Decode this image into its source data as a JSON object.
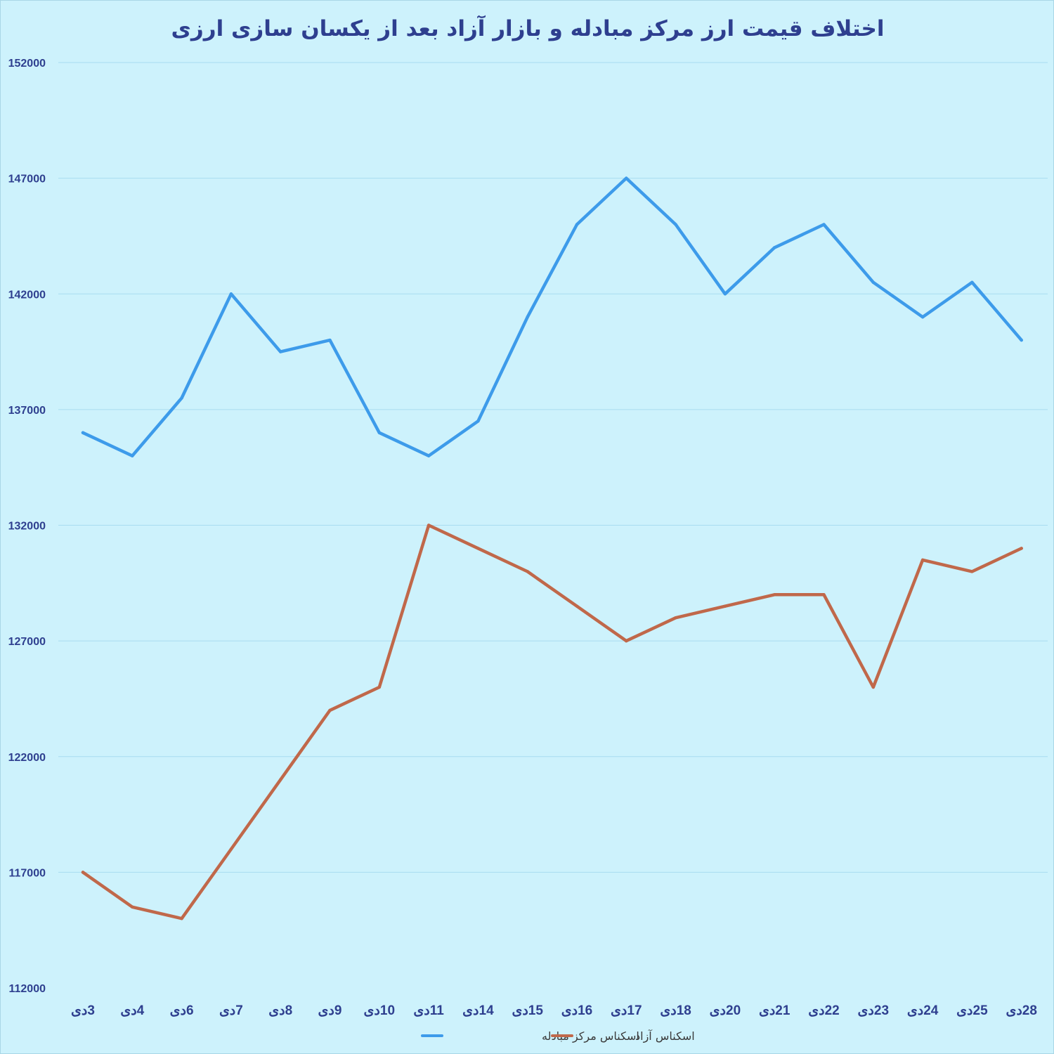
{
  "chart_data": {
    "type": "line",
    "title": "اختلاف قیمت ارز مرکز مبادله و بازار آزاد بعد از یکسان سازی ارزی",
    "xlabel": "",
    "ylabel": "",
    "categories": [
      "3دی",
      "4دی",
      "6دی",
      "7دی",
      "8دی",
      "9دی",
      "10دی",
      "11دی",
      "14دی",
      "15دی",
      "16دی",
      "17دی",
      "18دی",
      "20دی",
      "21دی",
      "22دی",
      "23دی",
      "24دی",
      "25دی",
      "28دی"
    ],
    "yticks": [
      "112000",
      "117000",
      "122000",
      "127000",
      "132000",
      "137000",
      "142000",
      "147000",
      "152000"
    ],
    "ylim": [
      112000,
      152000
    ],
    "grid": true,
    "legend_position": "bottom",
    "series": [
      {
        "name": "اسکناس مرکز مبادله",
        "color": "#3d9bea",
        "values": [
          136000,
          135000,
          137500,
          142000,
          139500,
          140000,
          136000,
          135000,
          136500,
          141000,
          145000,
          147000,
          145000,
          142000,
          144000,
          145000,
          142500,
          141000,
          142500,
          140000
        ]
      },
      {
        "name": "اسکناس آزاد",
        "color": "#c0684a",
        "values": [
          117000,
          115500,
          115000,
          118000,
          121000,
          124000,
          125000,
          132000,
          131000,
          130000,
          128500,
          127000,
          128000,
          128500,
          129000,
          129000,
          125000,
          130500,
          130000,
          131000
        ]
      }
    ]
  }
}
